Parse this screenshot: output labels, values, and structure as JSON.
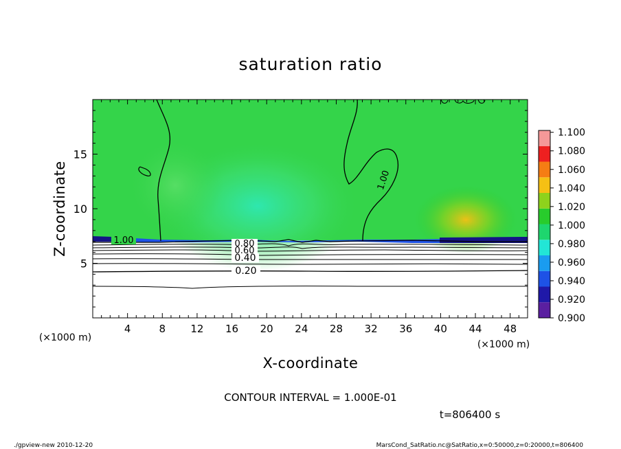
{
  "chart_data": {
    "type": "heatmap",
    "title": "saturation ratio",
    "xlabel": "X-coordinate",
    "ylabel": "Z-coordinate",
    "x_unit_label": "(×1000 m)",
    "y_unit_label": "(×1000 m)",
    "xlim": [
      0,
      50
    ],
    "ylim": [
      0,
      20
    ],
    "xticks": [
      "4",
      "8",
      "12",
      "16",
      "20",
      "24",
      "28",
      "32",
      "36",
      "40",
      "44",
      "48"
    ],
    "yticks": [
      "5",
      "10",
      "15"
    ],
    "colorbar": {
      "levels": [
        "0.900",
        "0.920",
        "0.940",
        "0.960",
        "0.980",
        "1.000",
        "1.020",
        "1.040",
        "1.060",
        "1.080",
        "1.100"
      ],
      "colors": [
        "#5a1fa0",
        "#1f18a8",
        "#1e52e6",
        "#1a9cf0",
        "#22e6d6",
        "#1ed66e",
        "#28cc2c",
        "#8ed21c",
        "#f5c014",
        "#f57d14",
        "#ee2020",
        "#f59898"
      ]
    },
    "contours": [
      {
        "label": "1.00",
        "z_approx": 7.2
      },
      {
        "label": "0.80",
        "z_approx": 6.9
      },
      {
        "label": "0.60",
        "z_approx": 6.4
      },
      {
        "label": "0.40",
        "z_approx": 5.5
      },
      {
        "label": "0.20",
        "z_approx": 4.3
      }
    ],
    "contour_interval_text": "CONTOUR INTERVAL = 1.000E-01",
    "time_text": "t=806400 s",
    "dominant_value_above_7km": 1.0,
    "region_below_7km": "white (below 0.900)"
  },
  "footer": {
    "left": "./gpview-new   2010-12-20",
    "right": "MarsCond_SatRatio.nc@SatRatio,x=0:50000,z=0:20000,t=806400"
  }
}
